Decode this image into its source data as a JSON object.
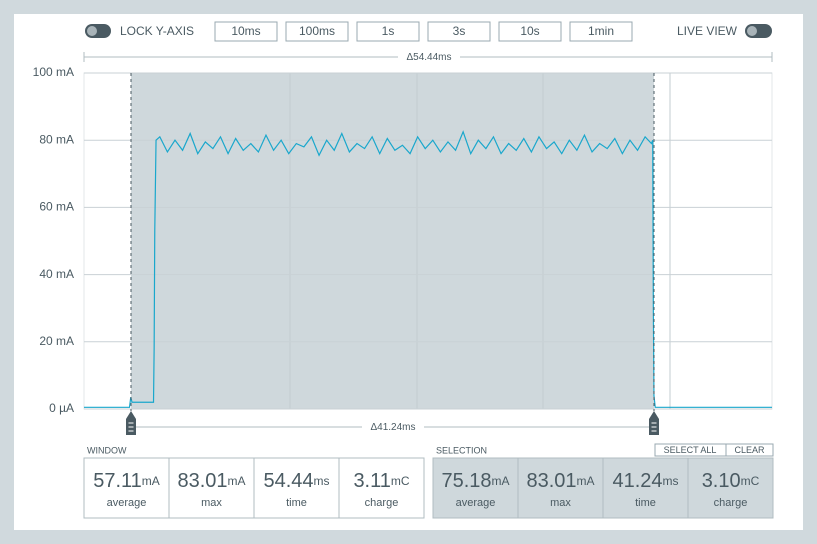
{
  "toolbar": {
    "lock_label": "LOCK Y-AXIS",
    "buttons": [
      "10ms",
      "100ms",
      "1s",
      "3s",
      "10s",
      "1min"
    ],
    "live_label": "LIVE VIEW"
  },
  "chart_data": {
    "type": "line",
    "total_span": "Δ54.44ms",
    "selection_span": "Δ41.24ms",
    "color": "#1aa7cc",
    "xlim": [
      0,
      54.44
    ],
    "ylim": [
      0,
      100
    ],
    "yticks": [
      {
        "value": 0,
        "label": "0 µA"
      },
      {
        "value": 20,
        "label": "20 mA"
      },
      {
        "value": 40,
        "label": "40 mA"
      },
      {
        "value": 60,
        "label": "60 mA"
      },
      {
        "value": 80,
        "label": "80 mA"
      },
      {
        "value": 100,
        "label": "100 mA"
      }
    ],
    "grid": true,
    "x": [
      0,
      3.6,
      3.7,
      3.8,
      5.5,
      5.55,
      5.6,
      5.7,
      6.0,
      6.6,
      7.2,
      7.8,
      8.4,
      9.0,
      9.6,
      10.2,
      10.8,
      11.4,
      12.0,
      12.6,
      13.2,
      13.8,
      14.4,
      15.0,
      15.6,
      16.2,
      16.8,
      17.4,
      18.0,
      18.6,
      19.2,
      19.8,
      20.4,
      21.0,
      21.6,
      22.2,
      22.8,
      23.4,
      24.0,
      24.6,
      25.2,
      25.8,
      26.4,
      27.0,
      27.6,
      28.2,
      28.8,
      29.4,
      30.0,
      30.6,
      31.2,
      31.8,
      32.4,
      33.0,
      33.6,
      34.2,
      34.8,
      35.4,
      36.0,
      36.6,
      37.2,
      37.8,
      38.4,
      39.0,
      39.6,
      40.2,
      40.8,
      41.4,
      42.0,
      42.6,
      43.2,
      43.8,
      44.4,
      44.9,
      45.0,
      45.05,
      45.1,
      45.2,
      54.44
    ],
    "values": [
      0.5,
      0.5,
      3.5,
      2,
      2,
      18,
      53,
      80,
      81,
      76.5,
      80,
      77,
      82,
      76,
      79.5,
      77.5,
      81,
      76,
      80.5,
      77,
      79,
      76.5,
      81.5,
      77,
      80,
      76,
      79,
      78,
      81,
      75.5,
      80,
      77,
      82,
      76.5,
      79,
      77.5,
      81,
      76,
      80.5,
      77,
      78.5,
      76,
      81,
      77.5,
      80,
      76.5,
      79.5,
      77,
      82.5,
      76,
      80,
      77.5,
      81,
      76,
      79,
      77,
      80.5,
      76.5,
      81,
      77.5,
      79.5,
      76,
      80,
      77,
      81.5,
      76.5,
      79,
      77.5,
      80.5,
      76,
      80,
      77,
      81,
      79,
      80,
      30,
      4,
      0.5,
      0.5
    ]
  },
  "window": {
    "title": "WINDOW",
    "stats": [
      {
        "value": "57.11",
        "unit": "mA",
        "label": "average"
      },
      {
        "value": "83.01",
        "unit": "mA",
        "label": "max"
      },
      {
        "value": "54.44",
        "unit": "ms",
        "label": "time"
      },
      {
        "value": "3.11",
        "unit": "mC",
        "label": "charge"
      }
    ]
  },
  "selection": {
    "title": "SELECTION",
    "select_all": "SELECT ALL",
    "clear": "CLEAR",
    "stats": [
      {
        "value": "75.18",
        "unit": "mA",
        "label": "average"
      },
      {
        "value": "83.01",
        "unit": "mA",
        "label": "max"
      },
      {
        "value": "41.24",
        "unit": "ms",
        "label": "time"
      },
      {
        "value": "3.10",
        "unit": "mC",
        "label": "charge"
      }
    ]
  }
}
